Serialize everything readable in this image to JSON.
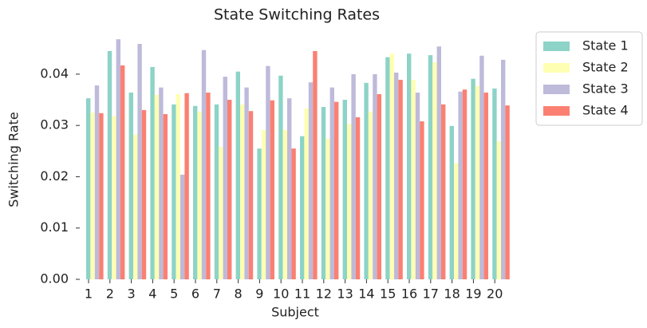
{
  "chart_data": {
    "type": "bar",
    "title": "State Switching Rates",
    "xlabel": "Subject",
    "ylabel": "Switching Rate",
    "categories": [
      "1",
      "2",
      "3",
      "4",
      "5",
      "6",
      "7",
      "8",
      "9",
      "10",
      "11",
      "12",
      "13",
      "14",
      "15",
      "16",
      "17",
      "18",
      "19",
      "20"
    ],
    "series": [
      {
        "name": "State 1",
        "color": "#8dd3c7",
        "values": [
          0.0353,
          0.0445,
          0.0364,
          0.0414,
          0.0341,
          0.0338,
          0.0341,
          0.0405,
          0.0255,
          0.0397,
          0.0279,
          0.0336,
          0.035,
          0.0383,
          0.0433,
          0.044,
          0.0437,
          0.0299,
          0.0391,
          0.0372
        ]
      },
      {
        "name": "State 2",
        "color": "#ffffb3",
        "values": [
          0.0325,
          0.0318,
          0.0282,
          0.036,
          0.0361,
          0.0327,
          0.0258,
          0.0341,
          0.0291,
          0.0291,
          0.0333,
          0.0274,
          0.0303,
          0.0327,
          0.044,
          0.0389,
          0.0423,
          0.0226,
          0.0377,
          0.0269
        ]
      },
      {
        "name": "State 3",
        "color": "#bebada",
        "values": [
          0.0378,
          0.0468,
          0.0459,
          0.0374,
          0.0204,
          0.0447,
          0.0395,
          0.0374,
          0.0416,
          0.0353,
          0.0384,
          0.0374,
          0.04,
          0.04,
          0.0403,
          0.0364,
          0.0454,
          0.0366,
          0.0436,
          0.0428
        ]
      },
      {
        "name": "State 4",
        "color": "#fb8072",
        "values": [
          0.0324,
          0.0417,
          0.033,
          0.0322,
          0.0363,
          0.0364,
          0.035,
          0.0328,
          0.0349,
          0.0255,
          0.0445,
          0.0346,
          0.0316,
          0.0361,
          0.0389,
          0.0308,
          0.0341,
          0.037,
          0.0364,
          0.0339
        ]
      }
    ],
    "ylim": [
      0,
      0.0473
    ],
    "yticks": [
      {
        "value": 0,
        "label": "0.00"
      },
      {
        "value": 0.01,
        "label": "0.01"
      },
      {
        "value": 0.02,
        "label": "0.02"
      },
      {
        "value": 0.03,
        "label": "0.03"
      },
      {
        "value": 0.04,
        "label": "0.04"
      }
    ],
    "legend": "outside-upper-right"
  }
}
